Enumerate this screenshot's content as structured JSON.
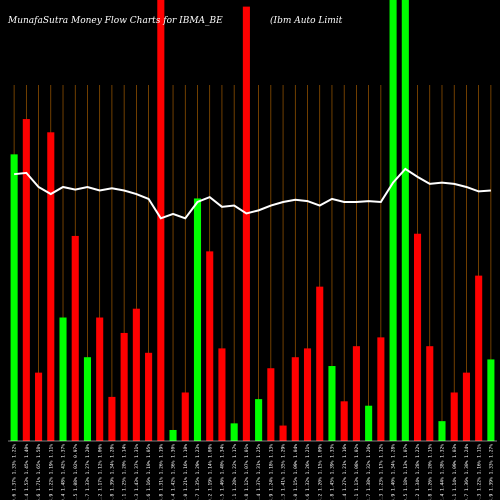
{
  "chart_data": {
    "type": "bar",
    "title_left": "MunafaSutra  Money Flow  Charts for IBMA_BE",
    "title_right": "(Ibm Auto  Limit",
    "colors": {
      "up": "#00ff00",
      "down": "#ff0000",
      "line": "#ffffff",
      "grid": "#a05a00",
      "background": "#000000"
    },
    "ylim": [
      0,
      100
    ],
    "categories": [
      "1219.6     1.37% 1.33% 1.22%",
      "1208.4     1.53% 1.45% 1.40%",
      "1196.6     1.71% 1.65% 1.58%",
      "1188.9     1.22% 1.19% 1.11%",
      "1179.4     1.48% 1.42% 1.37%",
      "1171.5     1.08% 1.02% 0.97%",
      "1165.7     1.33% 1.27% 1.20%",
      "1161.2     1.17% 1.12% 1.06%",
      "1154.8     1.39% 1.34% 1.28%",
      "1147.1     1.25% 1.20% 1.14%",
      "1139.3     1.43% 1.37% 1.31%",
      "1132.6     1.16% 1.10% 1.05%",
      "1126.8     1.31% 1.26% 1.19%",
      "1119.4     1.42% 1.36% 1.30%",
      "1112.0     1.21% 1.16% 1.10%",
      "1105.7     1.35% 1.29% 1.23%",
      "1099.2     1.19% 1.14% 1.08%",
      "1093.5     1.46% 1.40% 1.34%",
      "1087.1     1.28% 1.22% 1.17%",
      "1080.8     1.12% 1.07% 1.01%",
      "1074.4     1.37% 1.31% 1.25%",
      "1068.9     1.24% 1.18% 1.13%",
      "1062.3     1.41% 1.35% 1.29%",
      "1056.0     1.15% 1.09% 1.04%",
      "1049.6     1.32% 1.26% 1.21%",
      "1043.2     1.20% 1.15% 1.09%",
      "1037.8     1.45% 1.39% 1.33%",
      "1031.4     1.27% 1.21% 1.16%",
      "1025.1     1.13% 1.08% 1.02%",
      "1018.7     1.38% 1.32% 1.26%",
      "1012.3     1.23% 1.17% 1.12%",
      "1006.9     1.40% 1.34% 1.28%",
      "1000.5     1.18% 1.13% 1.07%",
      "994.2     1.34% 1.28% 1.22%",
      "988.8     1.26% 1.20% 1.15%",
      "982.4     1.44% 1.38% 1.32%",
      "976.1     1.14% 1.09% 1.03%",
      "970.7     1.36% 1.30% 1.24%",
      "964.3     1.22% 1.16% 1.11%",
      "958.9     1.39% 1.33% 1.27%",
      "952.5     1.17% 1.12% 1.06%"
    ],
    "bars": [
      {
        "dir": "up",
        "value": 65
      },
      {
        "dir": "down",
        "value": 73
      },
      {
        "dir": "down",
        "value": 15.5
      },
      {
        "dir": "down",
        "value": 70
      },
      {
        "dir": "up",
        "value": 28
      },
      {
        "dir": "down",
        "value": 46.5
      },
      {
        "dir": "up",
        "value": 19
      },
      {
        "dir": "down",
        "value": 28
      },
      {
        "dir": "down",
        "value": 10
      },
      {
        "dir": "down",
        "value": 24.5
      },
      {
        "dir": "down",
        "value": 30
      },
      {
        "dir": "down",
        "value": 20
      },
      {
        "dir": "down",
        "value": 100
      },
      {
        "dir": "up",
        "value": 2.5
      },
      {
        "dir": "down",
        "value": 11
      },
      {
        "dir": "up",
        "value": 55
      },
      {
        "dir": "down",
        "value": 43
      },
      {
        "dir": "down",
        "value": 21
      },
      {
        "dir": "up",
        "value": 4
      },
      {
        "dir": "down",
        "value": 98.5
      },
      {
        "dir": "up",
        "value": 9.5
      },
      {
        "dir": "down",
        "value": 16.5
      },
      {
        "dir": "down",
        "value": 3.5
      },
      {
        "dir": "down",
        "value": 19
      },
      {
        "dir": "down",
        "value": 21
      },
      {
        "dir": "down",
        "value": 35
      },
      {
        "dir": "up",
        "value": 17
      },
      {
        "dir": "down",
        "value": 9
      },
      {
        "dir": "down",
        "value": 21.5
      },
      {
        "dir": "up",
        "value": 8
      },
      {
        "dir": "down",
        "value": 23.5
      },
      {
        "dir": "up",
        "value": 100
      },
      {
        "dir": "up",
        "value": 100
      },
      {
        "dir": "down",
        "value": 47
      },
      {
        "dir": "down",
        "value": 21.5
      },
      {
        "dir": "up",
        "value": 4.5
      },
      {
        "dir": "down",
        "value": 11
      },
      {
        "dir": "down",
        "value": 15.5
      },
      {
        "dir": "down",
        "value": 37.5
      },
      {
        "dir": "up",
        "value": 18.5
      }
    ],
    "line": [
      60.5,
      60.8,
      57.6,
      56,
      57.6,
      57,
      57.6,
      56.8,
      57.3,
      56.8,
      56,
      54.9,
      50.5,
      51.5,
      50.5,
      54.2,
      55.3,
      53.1,
      53.4,
      51.6,
      52.3,
      53.4,
      54.2,
      54.7,
      54.4,
      53.4,
      54.9,
      54.2,
      54.2,
      54.4,
      54.2,
      58.6,
      61.7,
      59.9,
      58.3,
      58.6,
      58.3,
      57.6,
      56.6,
      56.8
    ]
  }
}
